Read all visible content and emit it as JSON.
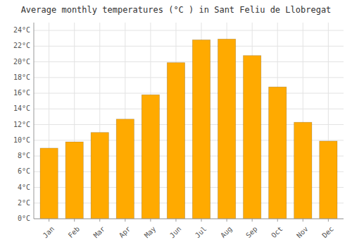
{
  "chart_data": {
    "type": "bar",
    "title": "Average monthly temperatures (°C ) in Sant Feliu de Llobregat",
    "categories": [
      "Jan",
      "Feb",
      "Mar",
      "Apr",
      "May",
      "Jun",
      "Jul",
      "Aug",
      "Sep",
      "Oct",
      "Nov",
      "Dec"
    ],
    "values": [
      9.0,
      9.8,
      11.0,
      12.7,
      15.8,
      19.9,
      22.8,
      22.9,
      20.8,
      16.8,
      12.3,
      9.9
    ],
    "color": "#FFAA00",
    "ylim": [
      0,
      25
    ],
    "yticks": [
      {
        "value": 0,
        "label": "0°C"
      },
      {
        "value": 2,
        "label": "2°C"
      },
      {
        "value": 4,
        "label": "4°C"
      },
      {
        "value": 6,
        "label": "6°C"
      },
      {
        "value": 8,
        "label": "8°C"
      },
      {
        "value": 10,
        "label": "10°C"
      },
      {
        "value": 12,
        "label": "12°C"
      },
      {
        "value": 14,
        "label": "14°C"
      },
      {
        "value": 16,
        "label": "16°C"
      },
      {
        "value": 18,
        "label": "18°C"
      },
      {
        "value": 20,
        "label": "20°C"
      },
      {
        "value": 22,
        "label": "22°C"
      },
      {
        "value": 24,
        "label": "24°C"
      }
    ],
    "grid": true
  }
}
